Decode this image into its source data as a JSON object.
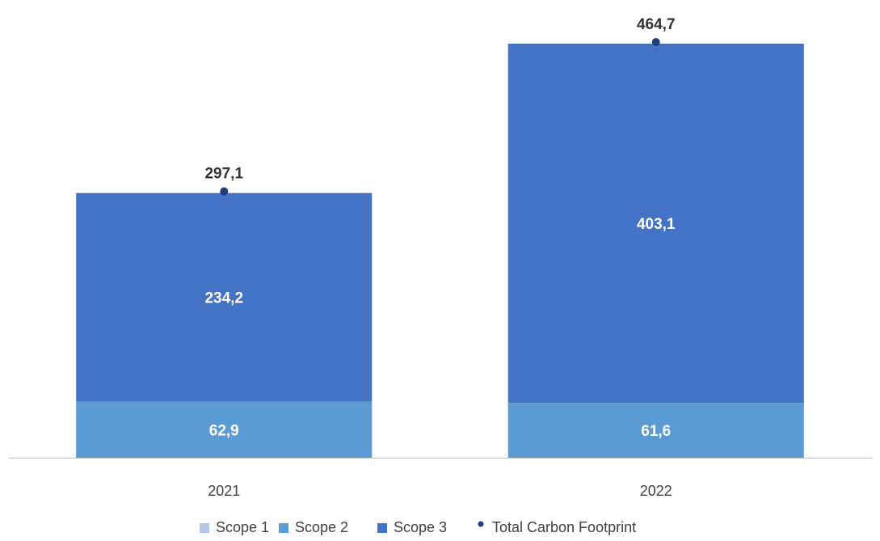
{
  "chart_data": {
    "type": "bar",
    "stacked": true,
    "categories": [
      "2021",
      "2022"
    ],
    "series": [
      {
        "name": "Scope 1",
        "values": [
          0,
          0
        ],
        "color": "#b4c7e7",
        "labels": [
          "",
          ""
        ]
      },
      {
        "name": "Scope 2",
        "values": [
          62.9,
          61.6
        ],
        "color": "#5b9bd5",
        "labels": [
          "62,9",
          "61,6"
        ]
      },
      {
        "name": "Scope 3",
        "values": [
          234.2,
          403.1
        ],
        "color": "#4472c4",
        "labels": [
          "234,2",
          "403,1"
        ]
      }
    ],
    "total": {
      "name": "Total Carbon Footprint",
      "values": [
        297.1,
        464.7
      ],
      "labels": [
        "297,1",
        "464,7"
      ],
      "color": "#1f3f7a"
    },
    "ylim": [
      0,
      464.7
    ],
    "grid": false,
    "legend_position": "bottom"
  }
}
